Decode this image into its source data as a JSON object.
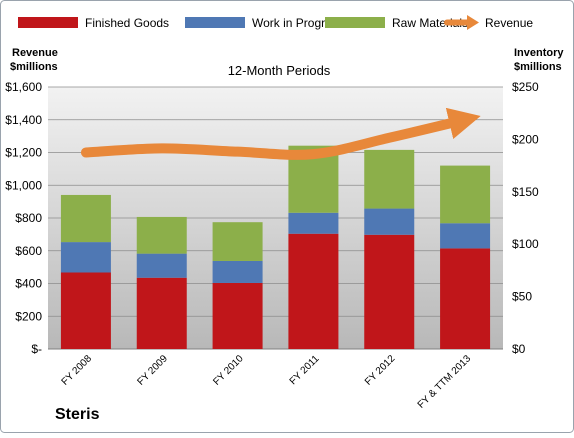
{
  "chart_data": {
    "type": "bar",
    "stacked": true,
    "title": "12-Month Periods",
    "footer_label": "Steris",
    "categories": [
      "FY 2008",
      "FY 2009",
      "FY 2010",
      "FY 2011",
      "FY 2012",
      "FY & TTM 2013"
    ],
    "left_axis": {
      "title_line1": "Revenue",
      "title_line2": "$millions",
      "ylim": [
        0,
        1600
      ],
      "ticks": [
        0,
        200,
        400,
        600,
        800,
        1000,
        1200,
        1400,
        1600
      ],
      "tick_labels": [
        "$-",
        "$200",
        "$400",
        "$600",
        "$800",
        "$1,000",
        "$1,200",
        "$1,400",
        "$1,600"
      ]
    },
    "right_axis": {
      "title_line1": "Inventory",
      "title_line2": "$millions",
      "ylim": [
        0,
        250
      ],
      "ticks": [
        0,
        50,
        100,
        150,
        200,
        250
      ],
      "tick_labels": [
        "$0",
        "$50",
        "$100",
        "$150",
        "$200",
        "$250"
      ]
    },
    "series": [
      {
        "name": "Finished Goods",
        "type": "bar",
        "axis": "right",
        "color": "#c0161a",
        "values": [
          73,
          68,
          63,
          110,
          109,
          96
        ]
      },
      {
        "name": "Work in Progress",
        "type": "bar",
        "axis": "right",
        "color": "#4f78b4",
        "values": [
          29,
          23,
          21,
          20,
          25,
          24
        ]
      },
      {
        "name": "Raw Materials",
        "type": "bar",
        "axis": "right",
        "color": "#8caf4a",
        "values": [
          45,
          35,
          37,
          64,
          56,
          55
        ]
      },
      {
        "name": "Revenue",
        "type": "line",
        "axis": "left",
        "color": "#e8883a",
        "values": [
          1200,
          1225,
          1205,
          1190,
          1290,
          1400
        ]
      }
    ],
    "grid": true,
    "legend_position": "top"
  }
}
